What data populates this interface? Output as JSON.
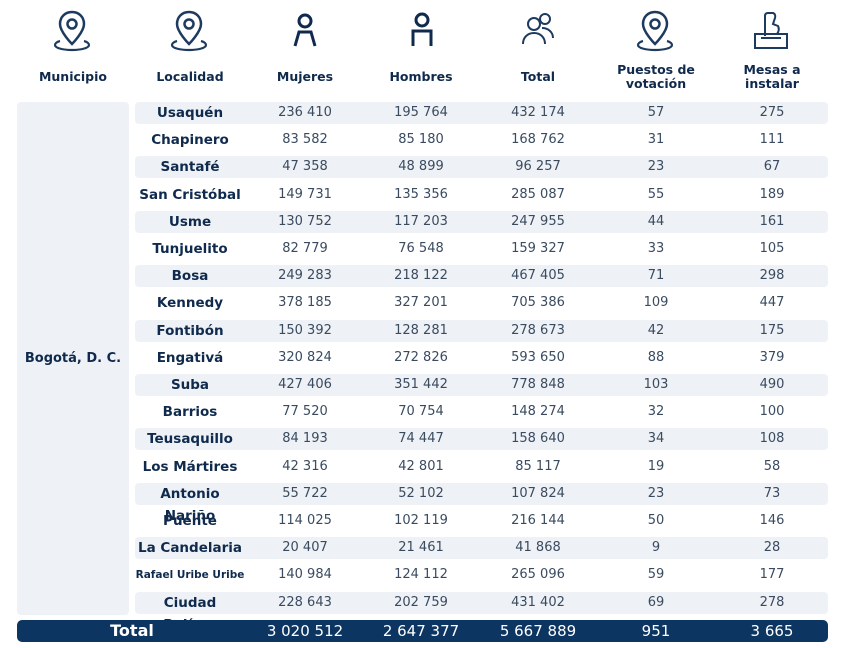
{
  "header": {
    "columns": [
      {
        "label": "Municipio",
        "icon": "location-pin-icon"
      },
      {
        "label": "Localidad",
        "icon": "location-pin-icon"
      },
      {
        "label": "Mujeres",
        "icon": "woman-icon"
      },
      {
        "label": "Hombres",
        "icon": "man-icon"
      },
      {
        "label": "Total",
        "icon": "people-group-icon"
      },
      {
        "label": "Puestos de votación",
        "icon": "location-pin-icon"
      },
      {
        "label": "Mesas a instalar",
        "icon": "ballot-box-icon"
      }
    ]
  },
  "municipio": "Bogotá, D. C.",
  "rows": [
    {
      "localidad": "Usaquén",
      "mujeres": "236 410",
      "hombres": "195 764",
      "total": "432 174",
      "puestos": "57",
      "mesas": "275"
    },
    {
      "localidad": "Chapinero",
      "mujeres": "83 582",
      "hombres": "85 180",
      "total": "168 762",
      "puestos": "31",
      "mesas": "111"
    },
    {
      "localidad": "Santafé",
      "mujeres": "47 358",
      "hombres": "48 899",
      "total": "96 257",
      "puestos": "23",
      "mesas": "67"
    },
    {
      "localidad": "San Cristóbal",
      "mujeres": "149 731",
      "hombres": "135 356",
      "total": "285 087",
      "puestos": "55",
      "mesas": "189"
    },
    {
      "localidad": "Usme",
      "mujeres": "130 752",
      "hombres": "117 203",
      "total": "247 955",
      "puestos": "44",
      "mesas": "161"
    },
    {
      "localidad": "Tunjuelito",
      "mujeres": "82 779",
      "hombres": "76 548",
      "total": "159 327",
      "puestos": "33",
      "mesas": "105"
    },
    {
      "localidad": "Bosa",
      "mujeres": "249 283",
      "hombres": "218 122",
      "total": "467 405",
      "puestos": "71",
      "mesas": "298"
    },
    {
      "localidad": "Kennedy",
      "mujeres": "378 185",
      "hombres": "327 201",
      "total": "705 386",
      "puestos": "109",
      "mesas": "447"
    },
    {
      "localidad": "Fontibón",
      "mujeres": "150 392",
      "hombres": "128 281",
      "total": "278 673",
      "puestos": "42",
      "mesas": "175"
    },
    {
      "localidad": "Engativá",
      "mujeres": "320 824",
      "hombres": "272 826",
      "total": "593 650",
      "puestos": "88",
      "mesas": "379"
    },
    {
      "localidad": "Suba",
      "mujeres": "427 406",
      "hombres": "351 442",
      "total": "778 848",
      "puestos": "103",
      "mesas": "490"
    },
    {
      "localidad": "Barrios Unidos",
      "mujeres": "77 520",
      "hombres": "70 754",
      "total": "148 274",
      "puestos": "32",
      "mesas": "100"
    },
    {
      "localidad": "Teusaquillo",
      "mujeres": "84 193",
      "hombres": "74 447",
      "total": "158 640",
      "puestos": "34",
      "mesas": "108"
    },
    {
      "localidad": "Los Mártires",
      "mujeres": "42 316",
      "hombres": "42 801",
      "total": "85 117",
      "puestos": "19",
      "mesas": "58"
    },
    {
      "localidad": "Antonio Nariño",
      "mujeres": "55 722",
      "hombres": "52 102",
      "total": "107 824",
      "puestos": "23",
      "mesas": "73"
    },
    {
      "localidad": "Puente Aranda",
      "mujeres": "114 025",
      "hombres": "102 119",
      "total": "216 144",
      "puestos": "50",
      "mesas": "146"
    },
    {
      "localidad": "La Candelaria",
      "mujeres": "20 407",
      "hombres": "21 461",
      "total": "41 868",
      "puestos": "9",
      "mesas": "28"
    },
    {
      "localidad": "Rafael Uribe Uribe",
      "mujeres": "140 984",
      "hombres": "124 112",
      "total": "265 096",
      "puestos": "59",
      "mesas": "177"
    },
    {
      "localidad": "Ciudad Bolívar",
      "mujeres": "228 643",
      "hombres": "202 759",
      "total": "431 402",
      "puestos": "69",
      "mesas": "278"
    }
  ],
  "totals": {
    "label": "Total",
    "mujeres": "3 020 512",
    "hombres": "2 647 377",
    "total": "5 667 889",
    "puestos": "951",
    "mesas": "3 665"
  },
  "colors": {
    "navy": "#0d3561",
    "row_shade": "#eef1f5",
    "text": "#3a4b60"
  }
}
